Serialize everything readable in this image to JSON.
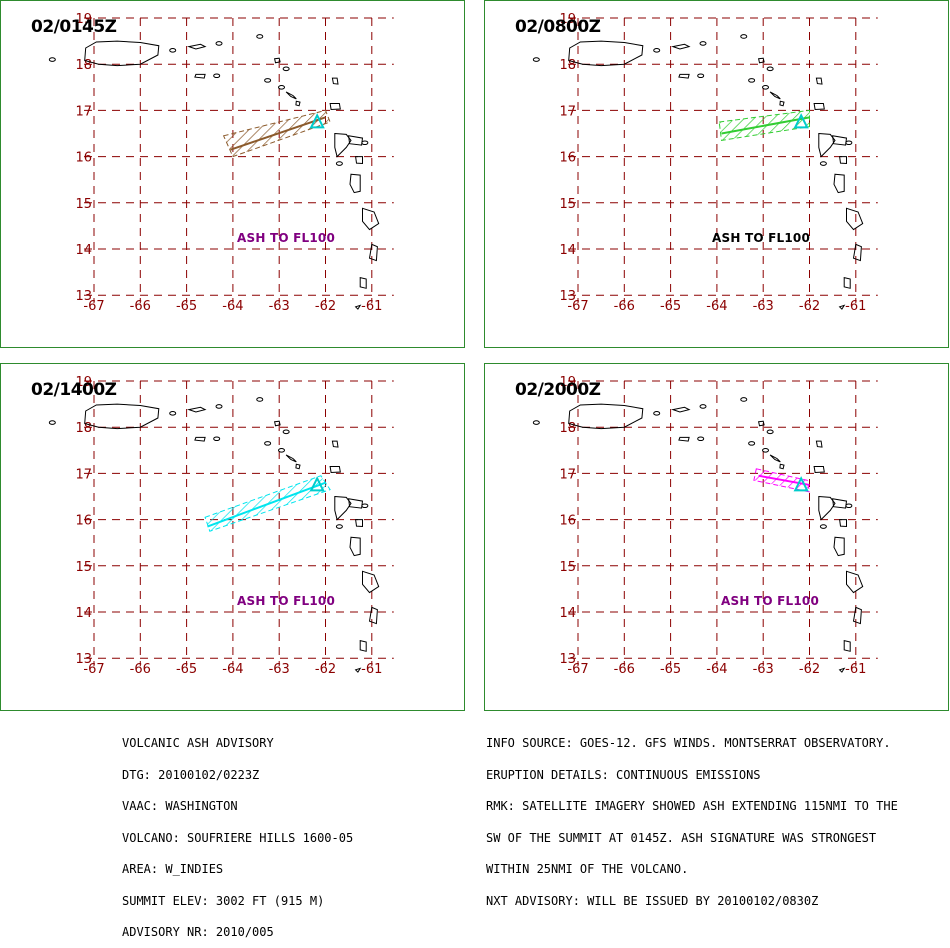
{
  "colors": {
    "grid": "#8b0000",
    "coast": "#000000",
    "border": "#2e8b2e",
    "label_purple": "#800080",
    "volcano": "#00cccc"
  },
  "axes": {
    "lon_labels": [
      "-67",
      "-66",
      "-65",
      "-64",
      "-63",
      "-62",
      "-61"
    ],
    "lat_labels": [
      "19",
      "18",
      "17",
      "16",
      "15",
      "14",
      "13"
    ]
  },
  "panels": [
    {
      "time": "02/0145Z",
      "ash_label": "ASH TO FL100",
      "label_color": "#800080",
      "plume_color": "#8b5a2b",
      "plume_polygon": [
        [
          -64.2,
          16.45
        ],
        [
          -62.0,
          17.0
        ],
        [
          -61.9,
          16.75
        ],
        [
          -64.0,
          16.0
        ]
      ],
      "plume_axis": [
        [
          -64.05,
          16.15
        ],
        [
          -62.0,
          16.85
        ]
      ]
    },
    {
      "time": "02/0800Z",
      "ash_label": "ASH TO FL100",
      "label_color": "#000000",
      "plume_color": "#32cd32",
      "plume_polygon": [
        [
          -63.95,
          16.75
        ],
        [
          -62.0,
          17.0
        ],
        [
          -62.0,
          16.65
        ],
        [
          -63.9,
          16.35
        ]
      ],
      "plume_axis": [
        [
          -63.9,
          16.5
        ],
        [
          -62.0,
          16.85
        ]
      ]
    },
    {
      "time": "02/1400Z",
      "ash_label": "ASH TO FL100",
      "label_color": "#800080",
      "plume_color": "#00e5ee",
      "plume_polygon": [
        [
          -64.6,
          16.05
        ],
        [
          -62.1,
          16.95
        ],
        [
          -61.9,
          16.65
        ],
        [
          -64.5,
          15.75
        ]
      ],
      "plume_axis": [
        [
          -64.55,
          15.85
        ],
        [
          -62.0,
          16.8
        ]
      ]
    },
    {
      "time": "02/2000Z",
      "ash_label": "ASH TO FL100",
      "label_color": "#800080",
      "plume_color": "#ff00ff",
      "plume_polygon": [
        [
          -63.15,
          17.1
        ],
        [
          -62.05,
          16.85
        ],
        [
          -62.0,
          16.6
        ],
        [
          -63.2,
          16.85
        ]
      ],
      "plume_axis": [
        [
          -63.1,
          16.95
        ],
        [
          -62.0,
          16.75
        ]
      ]
    }
  ],
  "advisory_left": [
    "VOLCANIC ASH ADVISORY",
    "DTG: 20100102/0223Z",
    "VAAC: WASHINGTON",
    "VOLCANO: SOUFRIERE HILLS 1600-05",
    "AREA: W_INDIES",
    "SUMMIT ELEV: 3002 FT (915 M)",
    "ADVISORY NR: 2010/005"
  ],
  "advisory_right": [
    "INFO SOURCE: GOES-12. GFS WINDS. MONTSERRAT OBSERVATORY.",
    "ERUPTION DETAILS: CONTINUOUS EMISSIONS",
    "RMK: SATELLITE IMAGERY SHOWED ASH EXTENDING 115NMI TO THE",
    "SW OF THE SUMMIT AT 0145Z. ASH SIGNATURE WAS STRONGEST",
    "WITHIN 25NMI OF THE VOLCANO.",
    "NXT ADVISORY: WILL BE ISSUED BY 20100102/0830Z"
  ]
}
